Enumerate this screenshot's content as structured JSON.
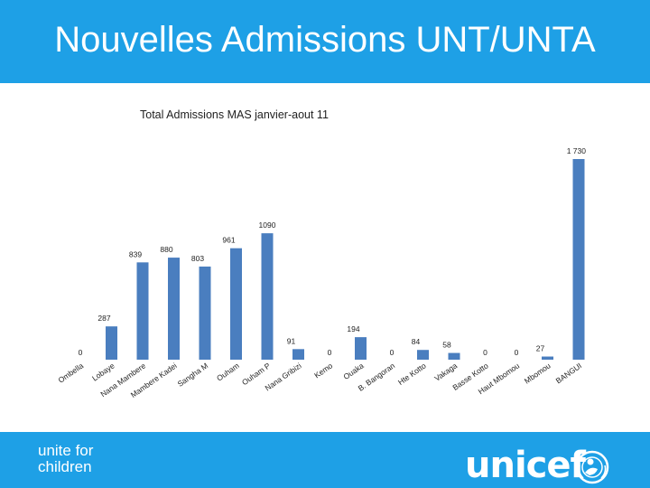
{
  "header": {
    "title": "Nouvelles Admissions UNT/UNTA"
  },
  "footer": {
    "tagline": "unite for\nchildren",
    "brand": "unicef"
  },
  "colors": {
    "header_bg": "#1ea0e6",
    "bar": "#4a7ebf",
    "text": "#222222"
  },
  "chart_data": {
    "type": "bar",
    "title": "Total Admissions MAS janvier-aout 11",
    "xlabel": "",
    "ylabel": "",
    "categories": [
      "Ombella",
      "Lobaye",
      "Nana Mambere",
      "Mambere Kadei",
      "Sangha M",
      "Ouham",
      "Ouham P",
      "Nana Gribizi",
      "Kemo",
      "Ouaka",
      "B. Bangoran",
      "Hte Kotto",
      "Vakaga",
      "Basse Kotto",
      "Haut Mbomou",
      "Mbomou",
      "BANGUI"
    ],
    "values": [
      0,
      287,
      839,
      880,
      803,
      961,
      1090,
      91,
      0,
      194,
      0,
      84,
      58,
      0,
      0,
      27,
      1730
    ],
    "data_labels": [
      "0",
      "287",
      "839",
      "880",
      "803",
      "961",
      "1090",
      "91",
      "0",
      "194",
      "0",
      "84",
      "58",
      "0",
      "0",
      "27",
      "1 730"
    ],
    "ylim": [
      0,
      1730
    ],
    "grid": false,
    "legend": false
  }
}
